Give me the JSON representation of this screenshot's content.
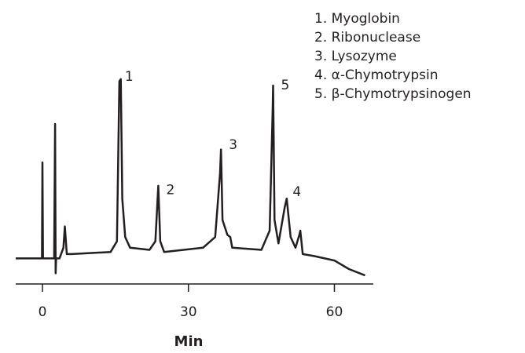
{
  "chart_data": {
    "type": "line",
    "xlabel": "Min",
    "x": [
      -5.5,
      -0.1,
      0,
      0.1,
      2.4,
      2.6,
      2.7,
      2.8,
      3.5,
      4.3,
      4.6,
      5.0,
      6,
      14,
      15.3,
      15.8,
      16.1,
      16.4,
      17,
      18,
      22,
      23.2,
      23.8,
      24.2,
      25,
      33,
      35.5,
      36.5,
      36.7,
      37,
      38,
      38.6,
      39,
      45,
      46.7,
      47.3,
      47.4,
      47.7,
      48.5,
      49.8,
      50.2,
      51,
      52,
      52.8,
      53,
      53.5,
      56,
      60,
      63,
      66.3
    ],
    "values": [
      12,
      12,
      57,
      12,
      12,
      75,
      5,
      12,
      12,
      17,
      27,
      14,
      14,
      15,
      20,
      95,
      96,
      40,
      22,
      17,
      16,
      20,
      46,
      20,
      15,
      17,
      22,
      52,
      63,
      30,
      23,
      22,
      17,
      16,
      25,
      81,
      93,
      30,
      19,
      36,
      40,
      22,
      17,
      23,
      25,
      14,
      13,
      11,
      7,
      4
    ],
    "color": "#231f20",
    "xlim": [
      -5.5,
      68
    ],
    "ylim": [
      0,
      100
    ],
    "xticks": [
      0,
      30,
      60
    ],
    "peak_labels": [
      {
        "text": "1",
        "x": 17.8,
        "y": 97
      },
      {
        "text": "2",
        "x": 26.3,
        "y": 44
      },
      {
        "text": "3",
        "x": 39.2,
        "y": 65
      },
      {
        "text": "4",
        "x": 52.3,
        "y": 43
      },
      {
        "text": "5",
        "x": 49.9,
        "y": 93
      }
    ],
    "legend": [
      "1. Myoglobin",
      "2. Ribonuclease",
      "3. Lysozyme",
      "4. α-Chymotrypsin",
      "5. β-Chymotrypsinogen"
    ]
  }
}
